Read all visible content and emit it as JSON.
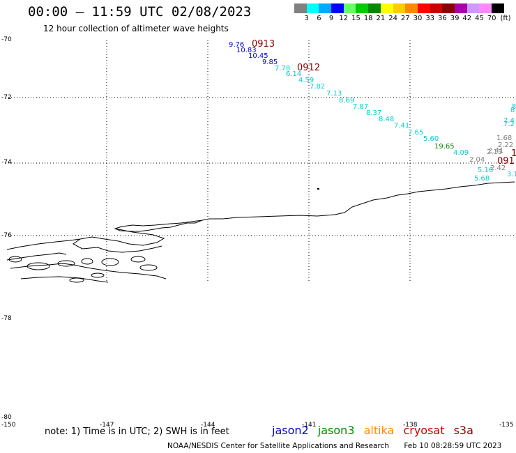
{
  "header": {
    "title": "00:00 – 11:59 UTC 02/08/2023",
    "subtitle": "12 hour collection of altimeter wave heights"
  },
  "color_scale": {
    "unit_label": "(ft)",
    "bins": [
      {
        "color": "#808080",
        "label": "3"
      },
      {
        "color": "#00ffff",
        "label": "6"
      },
      {
        "color": "#00aaff",
        "label": "9"
      },
      {
        "color": "#0000ff",
        "label": "12"
      },
      {
        "color": "#66ff66",
        "label": "15"
      },
      {
        "color": "#00cc00",
        "label": "18"
      },
      {
        "color": "#008800",
        "label": "21"
      },
      {
        "color": "#ffff00",
        "label": "24"
      },
      {
        "color": "#ffcc00",
        "label": "27"
      },
      {
        "color": "#ff8800",
        "label": "30"
      },
      {
        "color": "#ff0000",
        "label": "33"
      },
      {
        "color": "#cc0000",
        "label": "36"
      },
      {
        "color": "#880000",
        "label": "39"
      },
      {
        "color": "#aa00aa",
        "label": "42"
      },
      {
        "color": "#cc99ff",
        "label": "45"
      },
      {
        "color": "#ff88ff",
        "label": "70"
      },
      {
        "color": "#000000",
        "label": ""
      }
    ]
  },
  "axes": {
    "lat_labels": [
      "-70",
      "-72",
      "-74",
      "-76",
      "-78",
      "-80"
    ],
    "lon_labels": [
      "-150",
      "-147",
      "-144",
      "-141",
      "-138",
      "-135"
    ]
  },
  "tracks": [
    {
      "name": "jason2_blue",
      "color": "#0000cc",
      "readings": [
        "9.76",
        "10.83",
        "10.45",
        "9.85"
      ],
      "time_label": "0913",
      "time_color": "#880000"
    },
    {
      "name": "cyan_main",
      "color": "#00cccc",
      "readings": [
        "7.78",
        "6.14",
        "4.59",
        "7.82",
        "7.13",
        "8.69",
        "7.87",
        "8.37",
        "8.48",
        "7.41",
        "7.65",
        "5.60",
        "4.09"
      ],
      "time_label": "0912",
      "time_color": "#880000"
    },
    {
      "name": "green",
      "color": "#008800",
      "readings": [
        "19.65"
      ]
    },
    {
      "name": "gray_cluster",
      "color": "#808080",
      "readings": [
        "1.68",
        "2.22",
        "2.13",
        "2.04",
        "2.41",
        "2.42"
      ]
    },
    {
      "name": "cyan_lower",
      "color": "#00cccc",
      "readings": [
        "5.16",
        "5.68",
        "3.1"
      ]
    },
    {
      "name": "cyan_edge",
      "color": "#00cccc",
      "readings": [
        "8",
        "8",
        "7.4",
        "7.2"
      ]
    },
    {
      "name": "edge_time",
      "color": "#880000",
      "readings": [
        "091",
        "1"
      ]
    }
  ],
  "note": "note: 1) Time is in UTC; 2) SWH is in feet",
  "legend": [
    {
      "label": "jason2",
      "color": "#0000cc"
    },
    {
      "label": "jason3",
      "color": "#008800"
    },
    {
      "label": "altika",
      "color": "#ff8800"
    },
    {
      "label": "cryosat",
      "color": "#cc0000"
    },
    {
      "label": "s3a",
      "color": "#880000"
    }
  ],
  "footer": {
    "credit": "NOAA/NESDIS Center for Satellite Applications and Research",
    "timestamp": "Feb 10 08:28:59 UTC 2023"
  }
}
